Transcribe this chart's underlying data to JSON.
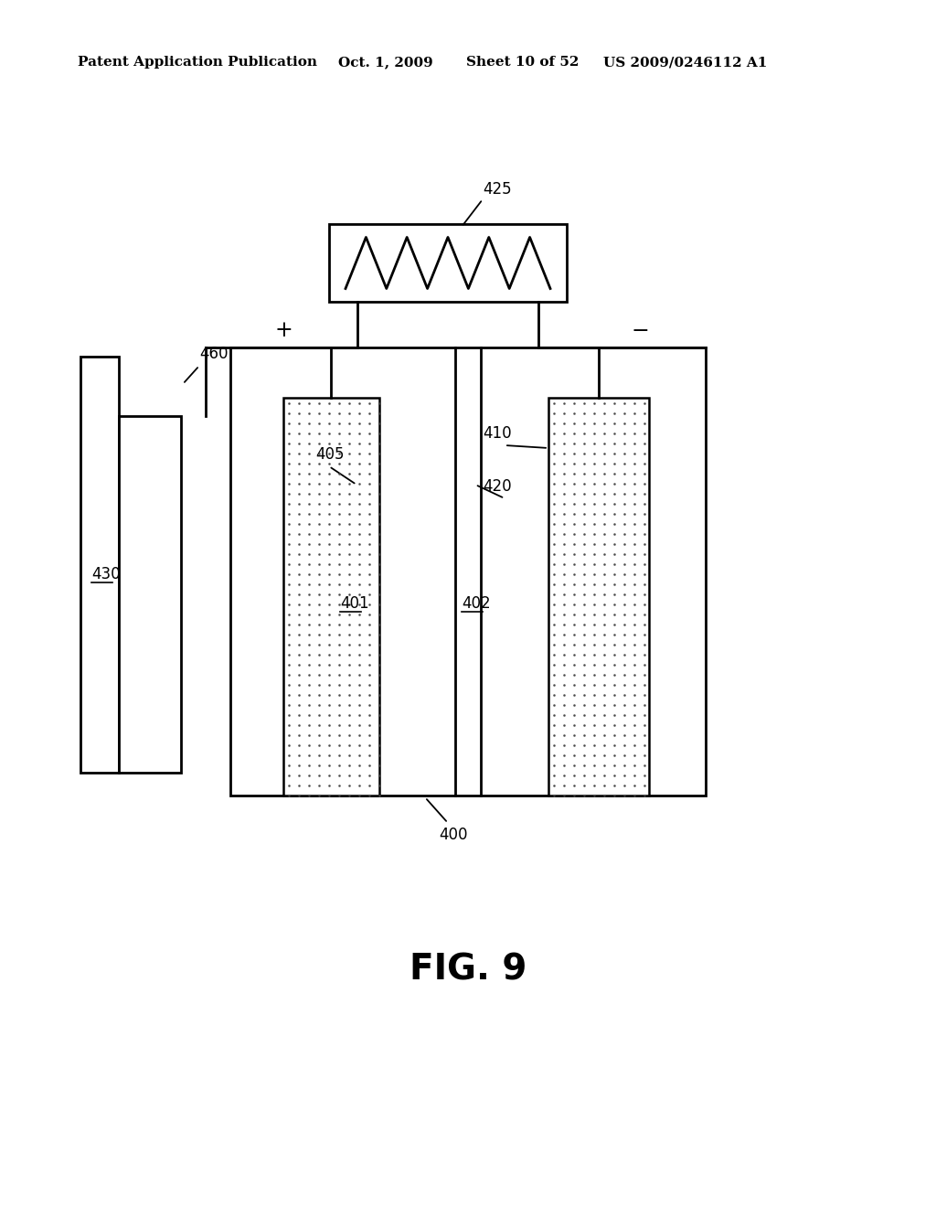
{
  "bg_color": "#ffffff",
  "line_color": "#000000",
  "header_text": "Patent Application Publication",
  "header_date": "Oct. 1, 2009",
  "header_sheet": "Sheet 10 of 52",
  "header_patent": "US 2009/0246112 A1",
  "figure_label": "FIG. 9"
}
